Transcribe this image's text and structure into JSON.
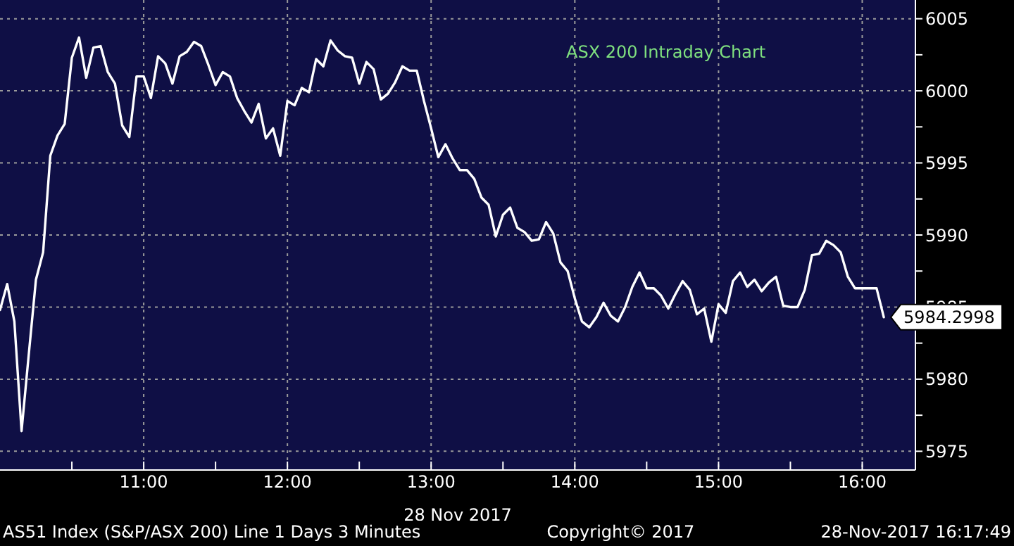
{
  "chart_data": {
    "type": "line",
    "title": "ASX 200 Intraday Chart",
    "xlabel": "28 Nov 2017",
    "annotations": [
      "AS51 Index (S&P/ASX 200) Line 1 Days 3 Minutes",
      "Copyright© 2017",
      "28-Nov-2017 16:17:49"
    ],
    "x": [
      10,
      10.05,
      10.1,
      10.15,
      10.2,
      10.25,
      10.3,
      10.35,
      10.4,
      10.45,
      10.5,
      10.55,
      10.6,
      10.65,
      10.7,
      10.75,
      10.8,
      10.85,
      10.9,
      10.95,
      11,
      11.05,
      11.1,
      11.15,
      11.2,
      11.25,
      11.3,
      11.35,
      11.4,
      11.45,
      11.5,
      11.55,
      11.6,
      11.65,
      11.7,
      11.75,
      11.8,
      11.85,
      11.9,
      11.95,
      12,
      12.05,
      12.1,
      12.15,
      12.2,
      12.25,
      12.3,
      12.35,
      12.4,
      12.45,
      12.5,
      12.55,
      12.6,
      12.65,
      12.7,
      12.75,
      12.8,
      12.85,
      12.9,
      12.95,
      13,
      13.05,
      13.1,
      13.15,
      13.2,
      13.25,
      13.3,
      13.35,
      13.4,
      13.45,
      13.5,
      13.55,
      13.6,
      13.65,
      13.7,
      13.75,
      13.8,
      13.85,
      13.9,
      13.95,
      14,
      14.05,
      14.1,
      14.15,
      14.2,
      14.25,
      14.3,
      14.35,
      14.4,
      14.45,
      14.5,
      14.55,
      14.6,
      14.65,
      14.7,
      14.75,
      14.8,
      14.85,
      14.9,
      14.95,
      15,
      15.05,
      15.1,
      15.15,
      15.2,
      15.25,
      15.3,
      15.35,
      15.4,
      15.45,
      15.5,
      15.55,
      15.6,
      15.65,
      15.7,
      15.75,
      15.8,
      15.85,
      15.9,
      15.95,
      16,
      16.05,
      16.1,
      16.15
    ],
    "series": [
      {
        "color": "#ffffff",
        "values": [
          5984.8,
          5986.6,
          5984.0,
          5976.4,
          5981.7,
          5986.9,
          5988.8,
          5995.5,
          5996.9,
          5997.7,
          6002.3,
          6003.7,
          6000.9,
          6003.0,
          6003.1,
          6001.3,
          6000.5,
          5997.6,
          5996.8,
          6001.0,
          6001.0,
          5999.5,
          6002.4,
          6001.9,
          6000.5,
          6002.4,
          6002.7,
          6003.4,
          6003.1,
          6001.8,
          6000.4,
          6001.3,
          6001.0,
          5999.5,
          5998.6,
          5997.8,
          5999.1,
          5996.7,
          5997.4,
          5995.5,
          5999.3,
          5999.0,
          6000.2,
          5999.9,
          6002.2,
          6001.7,
          6003.5,
          6002.8,
          6002.4,
          6002.3,
          6000.5,
          6002.0,
          6001.5,
          5999.4,
          5999.8,
          6000.6,
          6001.7,
          6001.4,
          6001.4,
          5999.3,
          5997.4,
          5995.4,
          5996.3,
          5995.3,
          5994.5,
          5994.5,
          5993.9,
          5992.6,
          5992.1,
          5989.9,
          5991.4,
          5991.9,
          5990.5,
          5990.2,
          5989.6,
          5989.7,
          5990.9,
          5990.1,
          5988.1,
          5987.5,
          5985.6,
          5984.0,
          5983.6,
          5984.3,
          5985.3,
          5984.4,
          5984.0,
          5985.0,
          5986.4,
          5987.4,
          5986.3,
          5986.3,
          5985.8,
          5984.9,
          5985.9,
          5986.8,
          5986.2,
          5984.5,
          5984.9,
          5982.6,
          5985.2,
          5984.6,
          5986.8,
          5987.4,
          5986.4,
          5986.9,
          5986.1,
          5986.7,
          5987.1,
          5985.1,
          5985.0,
          5985.0,
          5986.2,
          5988.6,
          5988.7,
          5989.6,
          5989.3,
          5988.8,
          5987.1,
          5986.3,
          5986.3,
          5986.3,
          5986.3,
          5984.2998
        ],
        "value_labels": [
          null,
          null,
          null,
          null,
          null,
          null,
          null,
          null,
          null,
          null,
          null,
          null,
          null,
          null,
          null,
          null,
          null,
          null,
          null,
          null,
          null,
          null,
          null,
          null,
          null,
          null,
          null,
          null,
          null,
          null,
          null,
          null,
          null,
          null,
          null,
          null,
          null,
          null,
          null,
          null,
          null,
          null,
          null,
          null,
          null,
          null,
          null,
          null,
          null,
          null,
          null,
          null,
          null,
          null,
          null,
          null,
          null,
          null,
          null,
          null,
          null,
          null,
          null,
          null,
          null,
          null,
          null,
          null,
          null,
          null,
          null,
          null,
          null,
          null,
          null,
          null,
          null,
          null,
          null,
          null,
          null,
          null,
          null,
          null,
          null,
          null,
          null,
          null,
          null,
          null,
          null,
          null,
          null,
          null,
          null,
          null,
          null,
          null,
          null,
          null,
          null,
          null,
          null,
          null,
          null,
          null,
          null,
          null,
          null,
          null,
          null,
          null,
          null,
          null,
          null,
          null,
          null,
          null,
          null,
          null,
          null,
          null,
          null,
          "5984.2998"
        ]
      }
    ],
    "xlim": [
      10,
      16.37
    ],
    "xticks": [
      {
        "value": 10.5,
        "label": null
      },
      {
        "value": 11,
        "label": "11:00"
      },
      {
        "value": 11.5,
        "label": null
      },
      {
        "value": 12,
        "label": "12:00"
      },
      {
        "value": 12.5,
        "label": null
      },
      {
        "value": 13,
        "label": "13:00"
      },
      {
        "value": 13.5,
        "label": null
      },
      {
        "value": 14,
        "label": "14:00"
      },
      {
        "value": 14.5,
        "label": null
      },
      {
        "value": 15,
        "label": "15:00"
      },
      {
        "value": 15.5,
        "label": null
      },
      {
        "value": 16,
        "label": "16:00"
      }
    ],
    "ylim": [
      5973.7,
      6006.3
    ],
    "yticks": [
      5975,
      {
        "value": 5977.5,
        "label": null
      },
      5980,
      {
        "value": 5982.5,
        "label": null
      },
      5985,
      {
        "value": 5987.5,
        "label": null
      },
      5990,
      {
        "value": 5992.5,
        "label": null
      },
      5995,
      {
        "value": 5997.5,
        "label": null
      },
      6000,
      {
        "value": 6002.5,
        "label": null
      },
      6005
    ],
    "grid": true,
    "line_style": "solid"
  }
}
